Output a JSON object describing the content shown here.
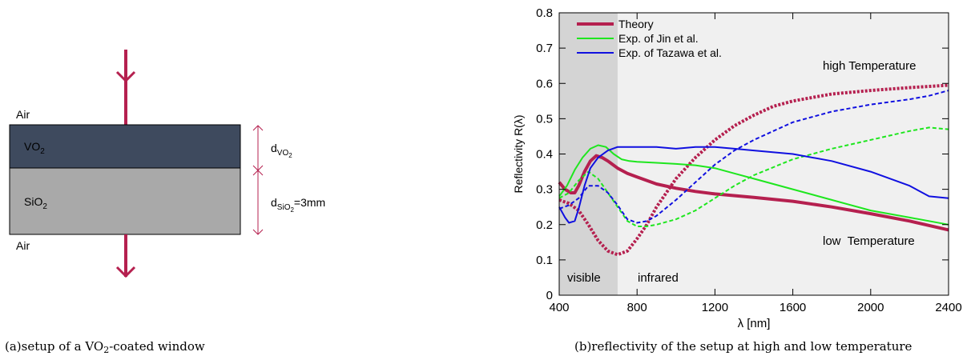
{
  "setup": {
    "air_top": "Air",
    "air_bottom": "Air",
    "layer_vo2_base": "VO",
    "layer_vo2_sub": "2",
    "layer_sio2_base": "SiO",
    "layer_sio2_sub": "2",
    "d_vo2_base": "d",
    "d_vo2_sub": "VO",
    "d_vo2_subsub": "2",
    "d_sio2_base": "d",
    "d_sio2_sub": "SiO",
    "d_sio2_subsub": "2",
    "d_sio2_value": "=3mm",
    "colors": {
      "vo2": "#3e4a5e",
      "sio2": "#a9a9a9",
      "arrow": "#b5204f"
    }
  },
  "captions": {
    "a_pre": "(a)setup of a VO",
    "a_sub": "2",
    "a_post": "-coated window",
    "b": "(b)reflectivity of the setup at high and low temperature"
  },
  "chart_data": {
    "type": "line",
    "xlabel": "λ [nm]",
    "ylabel": "Reflectivity R(λ)",
    "xlim": [
      400,
      2400
    ],
    "ylim": [
      0,
      0.8
    ],
    "xticks": [
      400,
      800,
      1200,
      1600,
      2000,
      2400
    ],
    "yticks": [
      0,
      0.1,
      0.2,
      0.3,
      0.4,
      0.5,
      0.6,
      0.7,
      0.8
    ],
    "ytick_labels": [
      "0",
      "0.1",
      "0.2",
      "0.3",
      "0.4",
      "0.5",
      "0.6",
      "0.7",
      "0.8"
    ],
    "shaded_region": {
      "from": 400,
      "to": 700,
      "color": "#d4d4d4"
    },
    "plot_background": "#f0f0f0",
    "region_labels": {
      "visible": "visible",
      "infrared": "infrared"
    },
    "annotations": {
      "high": "high Temperature",
      "low": "low  Temperature"
    },
    "legend_position": "top-left",
    "legend": [
      {
        "label": "Theory",
        "color": "#b5204f"
      },
      {
        "label": "Exp. of Jin et al.",
        "color": "#1ee61e"
      },
      {
        "label": "Exp. of Tazawa et al.",
        "color": "#1010e0"
      }
    ],
    "series": [
      {
        "name": "Theory",
        "condition": "low",
        "style": "solid",
        "color": "#b5204f",
        "x": [
          400,
          430,
          460,
          480,
          500,
          530,
          560,
          590,
          620,
          650,
          700,
          750,
          800,
          900,
          1000,
          1100,
          1200,
          1400,
          1600,
          1800,
          2000,
          2200,
          2400
        ],
        "y": [
          0.32,
          0.3,
          0.29,
          0.29,
          0.31,
          0.35,
          0.38,
          0.395,
          0.39,
          0.38,
          0.36,
          0.345,
          0.335,
          0.315,
          0.303,
          0.294,
          0.287,
          0.277,
          0.266,
          0.25,
          0.231,
          0.21,
          0.185
        ]
      },
      {
        "name": "Theory",
        "condition": "high",
        "style": "dotted",
        "color": "#b5204f",
        "x": [
          400,
          450,
          500,
          550,
          600,
          650,
          700,
          750,
          800,
          850,
          900,
          1000,
          1100,
          1200,
          1300,
          1400,
          1500,
          1600,
          1800,
          2000,
          2200,
          2400
        ],
        "y": [
          0.27,
          0.26,
          0.24,
          0.2,
          0.155,
          0.125,
          0.115,
          0.125,
          0.16,
          0.2,
          0.25,
          0.33,
          0.39,
          0.44,
          0.48,
          0.51,
          0.535,
          0.55,
          0.57,
          0.58,
          0.588,
          0.595
        ]
      },
      {
        "name": "Exp. of Jin et al.",
        "condition": "low",
        "style": "solid",
        "color": "#1ee61e",
        "x": [
          400,
          440,
          480,
          520,
          560,
          600,
          640,
          680,
          720,
          760,
          800,
          900,
          1000,
          1100,
          1200,
          1300,
          1400,
          1600,
          1800,
          2000,
          2200,
          2400
        ],
        "y": [
          0.28,
          0.31,
          0.355,
          0.39,
          0.415,
          0.425,
          0.42,
          0.4,
          0.385,
          0.38,
          0.378,
          0.375,
          0.372,
          0.368,
          0.36,
          0.345,
          0.33,
          0.3,
          0.27,
          0.24,
          0.22,
          0.2
        ]
      },
      {
        "name": "Exp. of Jin et al.",
        "condition": "high",
        "style": "dashed",
        "color": "#1ee61e",
        "x": [
          400,
          450,
          500,
          550,
          600,
          650,
          700,
          750,
          800,
          850,
          900,
          1000,
          1100,
          1200,
          1300,
          1400,
          1600,
          1800,
          2000,
          2200,
          2300,
          2400
        ],
        "y": [
          0.275,
          0.29,
          0.325,
          0.35,
          0.33,
          0.29,
          0.25,
          0.21,
          0.195,
          0.195,
          0.2,
          0.215,
          0.24,
          0.275,
          0.31,
          0.34,
          0.385,
          0.415,
          0.44,
          0.465,
          0.475,
          0.47
        ]
      },
      {
        "name": "Exp. of Tazawa et al.",
        "condition": "low",
        "style": "solid",
        "color": "#1010e0",
        "x": [
          400,
          430,
          450,
          480,
          500,
          530,
          560,
          600,
          650,
          700,
          800,
          900,
          1000,
          1100,
          1200,
          1300,
          1400,
          1600,
          1800,
          2000,
          2200,
          2300,
          2400
        ],
        "y": [
          0.25,
          0.22,
          0.205,
          0.21,
          0.245,
          0.31,
          0.36,
          0.39,
          0.41,
          0.42,
          0.42,
          0.42,
          0.415,
          0.42,
          0.42,
          0.415,
          0.41,
          0.4,
          0.38,
          0.35,
          0.31,
          0.28,
          0.275
        ]
      },
      {
        "name": "Exp. of Tazawa et al.",
        "condition": "high",
        "style": "dashed",
        "color": "#1010e0",
        "x": [
          400,
          450,
          500,
          550,
          600,
          650,
          700,
          750,
          800,
          850,
          900,
          1000,
          1100,
          1200,
          1300,
          1400,
          1500,
          1600,
          1800,
          2000,
          2200,
          2300,
          2400
        ],
        "y": [
          0.245,
          0.255,
          0.275,
          0.31,
          0.31,
          0.29,
          0.255,
          0.215,
          0.205,
          0.21,
          0.225,
          0.27,
          0.32,
          0.37,
          0.41,
          0.44,
          0.465,
          0.49,
          0.52,
          0.54,
          0.555,
          0.565,
          0.58
        ]
      }
    ]
  }
}
